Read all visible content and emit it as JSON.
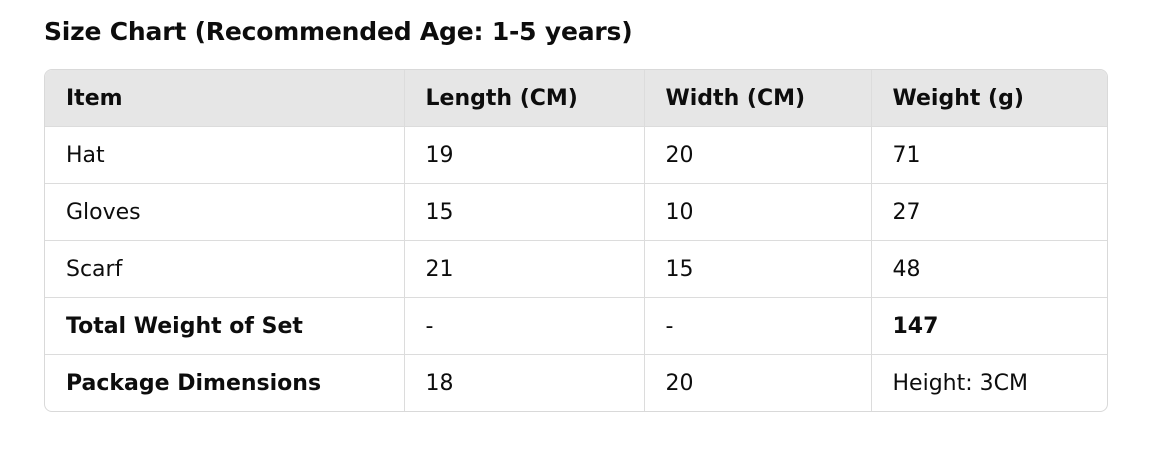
{
  "title": "Size Chart (Recommended Age: 1-5 years)",
  "table": {
    "headers": [
      "Item",
      "Length (CM)",
      "Width (CM)",
      "Weight (g)"
    ],
    "rows": [
      [
        "Hat",
        "19",
        "20",
        "71"
      ],
      [
        "Gloves",
        "15",
        "10",
        "27"
      ],
      [
        "Scarf",
        "21",
        "15",
        "48"
      ],
      [
        "Total Weight of Set",
        "-",
        "-",
        "147"
      ],
      [
        "Package Dimensions",
        "18",
        "20",
        "Height: 3CM"
      ]
    ]
  }
}
